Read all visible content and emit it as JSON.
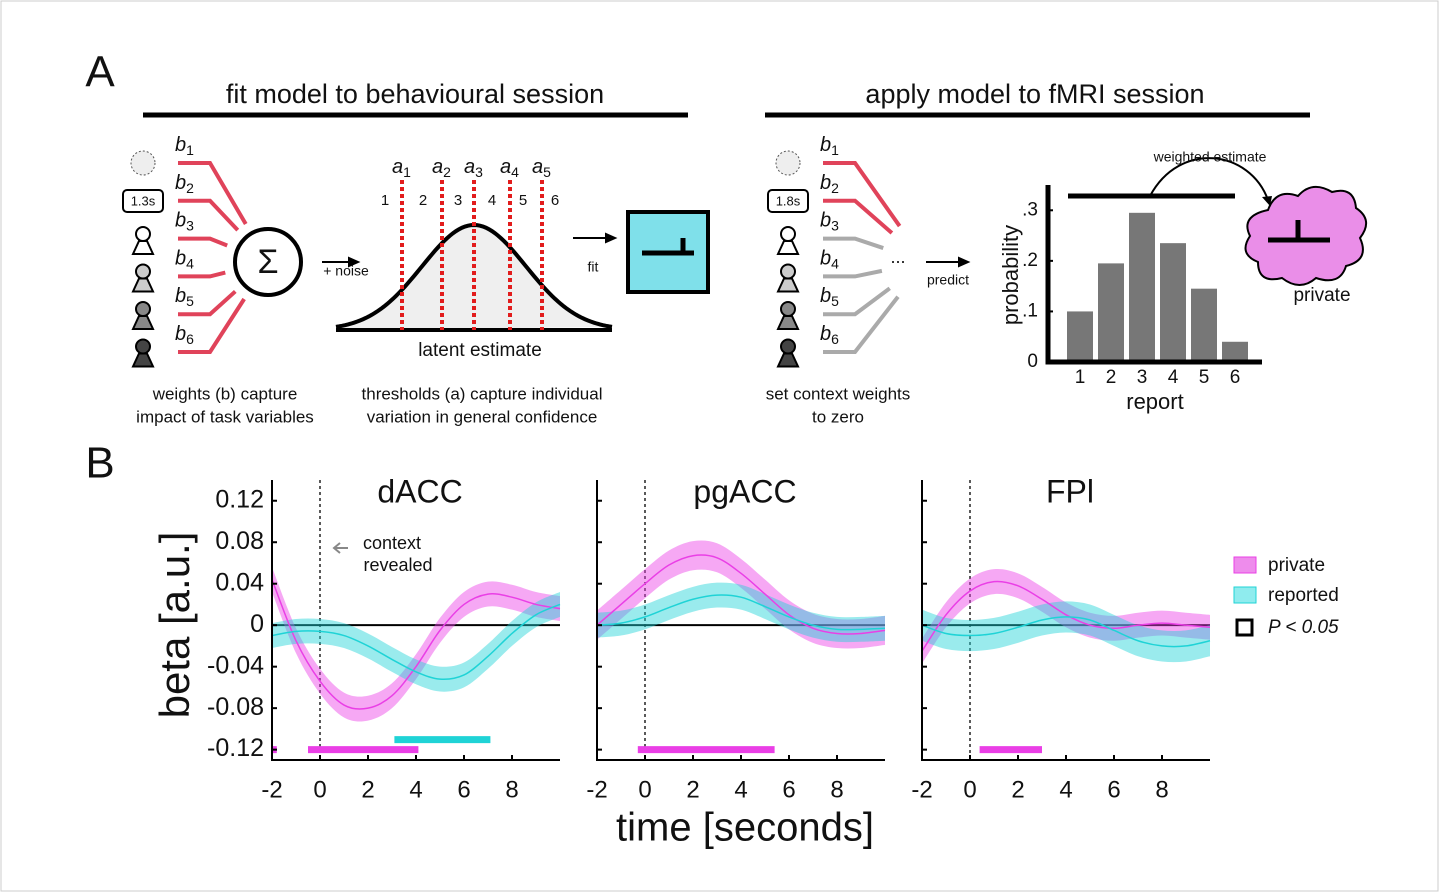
{
  "panel_labels": [
    "A",
    "B"
  ],
  "panel_a": {
    "headers": [
      "fit model to behavioural session",
      "apply model to fMRI session"
    ],
    "fit_diagram": {
      "weights": [
        {
          "symbol": "b",
          "index": "1"
        },
        {
          "symbol": "b",
          "index": "2"
        },
        {
          "symbol": "b",
          "index": "3"
        },
        {
          "symbol": "b",
          "index": "4"
        },
        {
          "symbol": "b",
          "index": "5"
        },
        {
          "symbol": "b",
          "index": "6"
        }
      ],
      "duration": "1.3s",
      "noise_label": "+ noise",
      "thresholds": [
        {
          "symbol": "a",
          "index": "1"
        },
        {
          "symbol": "a",
          "index": "2"
        },
        {
          "symbol": "a",
          "index": "3"
        },
        {
          "symbol": "a",
          "index": "4"
        },
        {
          "symbol": "a",
          "index": "5"
        }
      ],
      "bins": [
        "1",
        "2",
        "3",
        "4",
        "5",
        "6"
      ],
      "x_label": "latent estimate",
      "fit_label": "fit",
      "weights_caption": [
        "weights (b) capture",
        "impact of task variables"
      ],
      "thresholds_caption": [
        "thresholds (a) capture individual",
        "variation in general confidence"
      ]
    },
    "apply_diagram": {
      "weights": [
        {
          "symbol": "b",
          "index": "1"
        },
        {
          "symbol": "b",
          "index": "2"
        },
        {
          "symbol": "b",
          "index": "3"
        },
        {
          "symbol": "b",
          "index": "4"
        },
        {
          "symbol": "b",
          "index": "5"
        },
        {
          "symbol": "b",
          "index": "6"
        }
      ],
      "duration": "1.8s",
      "ellipsis": "...",
      "predict_label": "predict",
      "caption": [
        "set context weights",
        "to zero"
      ],
      "estimate_label": "weighted estimate",
      "output_label": "private"
    }
  },
  "panel_b": {
    "y_label": "beta [a.u.]",
    "x_label": "time [seconds]",
    "significance_label": "P < 0.05",
    "annotation": [
      "context",
      "revealed"
    ]
  },
  "chart_data": [
    {
      "type": "bar",
      "categories": [
        "1",
        "2",
        "3",
        "4",
        "5",
        "6"
      ],
      "values": [
        0.1,
        0.195,
        0.295,
        0.235,
        0.145,
        0.04
      ],
      "color": "#777777",
      "ylim": [
        0,
        0.35
      ],
      "yticks": [
        0,
        {
          "value": 0.1,
          "label": ".1"
        },
        {
          "value": 0.2,
          "label": ".2"
        },
        {
          "value": 0.3,
          "label": ".3"
        }
      ],
      "x_label": "report",
      "y_label": "probability"
    },
    {
      "type": "line",
      "title": "dACC",
      "x": [
        -2,
        -1,
        0,
        1,
        2,
        3,
        4,
        5,
        6,
        7,
        8,
        9,
        10
      ],
      "series": [
        {
          "name": "private",
          "color": "#ea3fe6",
          "values": [
            0.044,
            -0.015,
            -0.054,
            -0.077,
            -0.08,
            -0.068,
            -0.04,
            -0.005,
            0.02,
            0.03,
            0.027,
            0.02,
            0.016
          ],
          "errors": [
            0.012,
            0.012,
            0.012,
            0.012,
            0.012,
            0.012,
            0.012,
            0.012,
            0.012,
            0.012,
            0.012,
            0.012,
            0.012
          ],
          "significant": [
            [
              -2,
              -1.8
            ],
            [
              -0.5,
              4.1
            ]
          ]
        },
        {
          "name": "reported",
          "color": "#1fd3d6",
          "values": [
            -0.01,
            -0.006,
            -0.006,
            -0.01,
            -0.02,
            -0.033,
            -0.045,
            -0.052,
            -0.048,
            -0.03,
            -0.008,
            0.01,
            0.02
          ],
          "errors": [
            0.012,
            0.012,
            0.012,
            0.012,
            0.012,
            0.012,
            0.012,
            0.012,
            0.012,
            0.012,
            0.012,
            0.012,
            0.012
          ],
          "significant": [
            [
              3.1,
              7.1
            ]
          ]
        }
      ],
      "xlim": [
        -2,
        10
      ],
      "ylim": [
        -0.13,
        0.14
      ],
      "xticks": [
        -2,
        0,
        2,
        4,
        6,
        8
      ],
      "yticks": [
        -0.12,
        -0.08,
        -0.04,
        0,
        0.04,
        0.08,
        0.12
      ]
    },
    {
      "type": "line",
      "title": "pgACC",
      "x": [
        -2,
        -1,
        0,
        1,
        2,
        3,
        4,
        5,
        6,
        7,
        8,
        9,
        10
      ],
      "series": [
        {
          "color": "#ea3fe6",
          "values": [
            0,
            0.02,
            0.04,
            0.058,
            0.067,
            0.065,
            0.05,
            0.03,
            0.01,
            -0.003,
            -0.008,
            -0.008,
            -0.005
          ],
          "errors": [
            0.014,
            0.014,
            0.014,
            0.014,
            0.014,
            0.014,
            0.014,
            0.014,
            0.014,
            0.014,
            0.014,
            0.014,
            0.014
          ],
          "significant": [
            [
              -0.3,
              5.4
            ]
          ]
        },
        {
          "color": "#1fd3d6",
          "values": [
            0,
            0.002,
            0.008,
            0.017,
            0.025,
            0.029,
            0.027,
            0.018,
            0.008,
            0,
            -0.004,
            -0.004,
            -0.003
          ],
          "errors": [
            0.012,
            0.012,
            0.012,
            0.012,
            0.012,
            0.012,
            0.012,
            0.012,
            0.012,
            0.012,
            0.012,
            0.012,
            0.012
          ],
          "significant": []
        }
      ],
      "xlim": [
        -2,
        10
      ],
      "ylim": [
        -0.13,
        0.14
      ],
      "xticks": [
        -2,
        0,
        2,
        4,
        6,
        8
      ],
      "yticks": [
        -0.12,
        -0.08,
        -0.04,
        0,
        0.04,
        0.08,
        0.12
      ]
    },
    {
      "type": "line",
      "title": "FPl",
      "x": [
        -2,
        -1,
        0,
        1,
        2,
        3,
        4,
        5,
        6,
        7,
        8,
        9,
        10
      ],
      "series": [
        {
          "color": "#ea3fe6",
          "values": [
            -0.025,
            0.01,
            0.033,
            0.042,
            0.038,
            0.025,
            0.01,
            0,
            -0.003,
            0,
            0.002,
            0,
            -0.002
          ],
          "errors": [
            0.012,
            0.012,
            0.012,
            0.012,
            0.012,
            0.012,
            0.012,
            0.012,
            0.012,
            0.012,
            0.012,
            0.012,
            0.012
          ],
          "significant": [
            [
              0.4,
              3
            ]
          ]
        },
        {
          "color": "#1fd3d6",
          "values": [
            0,
            -0.008,
            -0.01,
            -0.008,
            -0.002,
            0.005,
            0.008,
            0.005,
            -0.005,
            -0.015,
            -0.02,
            -0.02,
            -0.015
          ],
          "errors": [
            0.015,
            0.015,
            0.015,
            0.015,
            0.015,
            0.015,
            0.015,
            0.015,
            0.015,
            0.015,
            0.015,
            0.015,
            0.015
          ],
          "significant": []
        }
      ],
      "xlim": [
        -2,
        10
      ],
      "ylim": [
        -0.13,
        0.14
      ],
      "xticks": [
        -2,
        0,
        2,
        4,
        6,
        8
      ],
      "yticks": [
        -0.12,
        -0.08,
        -0.04,
        0,
        0.04,
        0.08,
        0.12
      ]
    }
  ]
}
